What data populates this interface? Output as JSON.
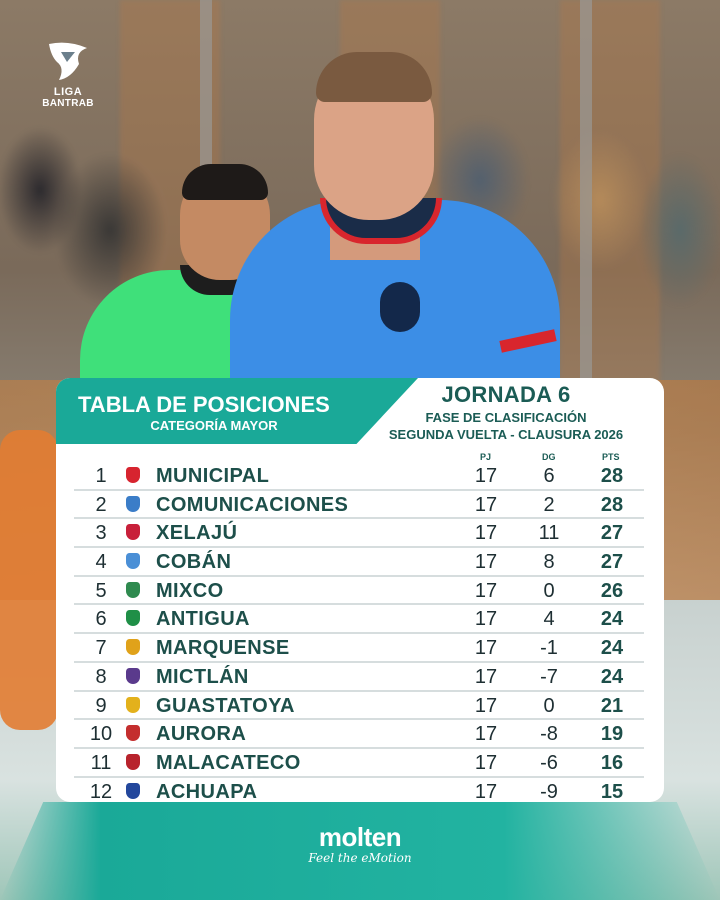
{
  "league": {
    "line1": "LIGA",
    "line2": "BANTRAB"
  },
  "title": {
    "main": "TABLA DE POSICIONES",
    "category": "CATEGORÍA MAYOR"
  },
  "round": {
    "jornada": "JORNADA 6",
    "phase": "FASE DE CLASIFICACIÓN",
    "tournament": "SEGUNDA VUELTA - CLAUSURA 2026"
  },
  "columns": {
    "pj": "PJ",
    "dg": "DG",
    "pts": "PTS"
  },
  "standings": [
    {
      "pos": "1",
      "team": "MUNICIPAL",
      "pj": "17",
      "dg": "6",
      "pts": "28",
      "crest_color": "#d7242f"
    },
    {
      "pos": "2",
      "team": "COMUNICACIONES",
      "pj": "17",
      "dg": "2",
      "pts": "28",
      "crest_color": "#3b7dc8"
    },
    {
      "pos": "3",
      "team": "XELAJÚ",
      "pj": "17",
      "dg": "11",
      "pts": "27",
      "crest_color": "#c8203a"
    },
    {
      "pos": "4",
      "team": "COBÁN",
      "pj": "17",
      "dg": "8",
      "pts": "27",
      "crest_color": "#4a8fd6"
    },
    {
      "pos": "5",
      "team": "MIXCO",
      "pj": "17",
      "dg": "0",
      "pts": "26",
      "crest_color": "#2f8a4f"
    },
    {
      "pos": "6",
      "team": "ANTIGUA",
      "pj": "17",
      "dg": "4",
      "pts": "24",
      "crest_color": "#1f8f47"
    },
    {
      "pos": "7",
      "team": "MARQUENSE",
      "pj": "17",
      "dg": "-1",
      "pts": "24",
      "crest_color": "#e0a21a"
    },
    {
      "pos": "8",
      "team": "MICTLÁN",
      "pj": "17",
      "dg": "-7",
      "pts": "24",
      "crest_color": "#5a3a8c"
    },
    {
      "pos": "9",
      "team": "GUASTATOYA",
      "pj": "17",
      "dg": "0",
      "pts": "21",
      "crest_color": "#e3b11c"
    },
    {
      "pos": "10",
      "team": "AURORA",
      "pj": "17",
      "dg": "-8",
      "pts": "19",
      "crest_color": "#c42e2e"
    },
    {
      "pos": "11",
      "team": "MALACATECO",
      "pj": "17",
      "dg": "-6",
      "pts": "16",
      "crest_color": "#b8232c"
    },
    {
      "pos": "12",
      "team": "ACHUAPA",
      "pj": "17",
      "dg": "-9",
      "pts": "15",
      "crest_color": "#23479c"
    }
  ],
  "sponsor": {
    "name": "molten",
    "tagline": "Feel the eMotion"
  },
  "colors": {
    "accent": "#1aa998",
    "text_dark": "#1d4f4a"
  }
}
